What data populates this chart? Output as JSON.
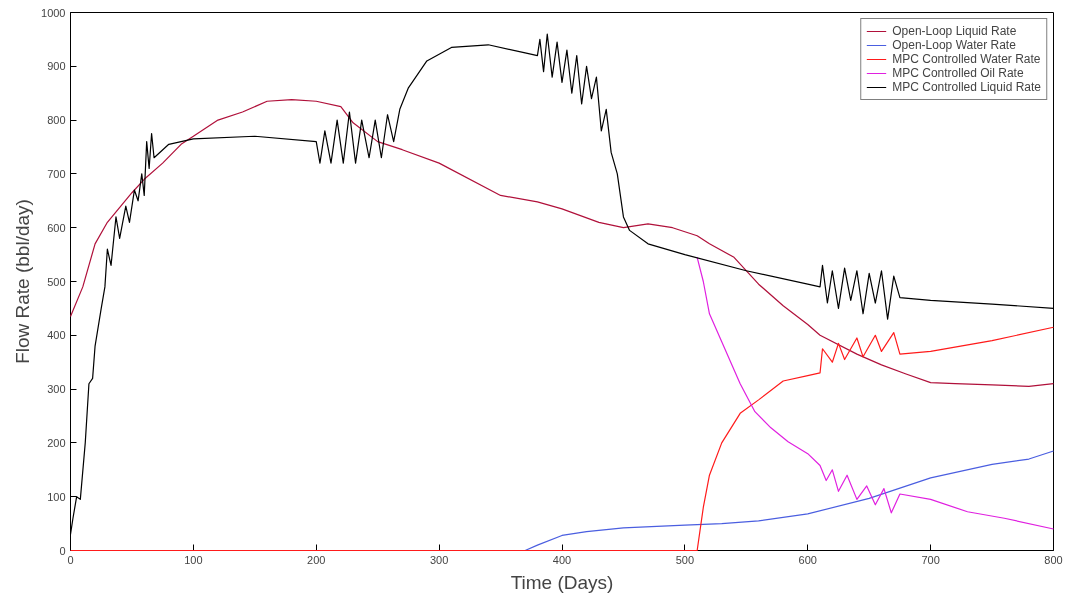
{
  "chart_data": {
    "type": "line",
    "xlabel": "Time (Days)",
    "ylabel": "Flow Rate (bbl/day)",
    "xlim": [
      0,
      800
    ],
    "ylim": [
      0,
      1000
    ],
    "xticks": [
      0,
      100,
      200,
      300,
      400,
      500,
      600,
      700,
      800
    ],
    "yticks": [
      0,
      100,
      200,
      300,
      400,
      500,
      600,
      700,
      800,
      900,
      1000
    ],
    "grid": false,
    "legend": "top right",
    "line_style": "solid",
    "marker": "none",
    "series": [
      {
        "name": "Open-Loop Liquid Rate",
        "color": "#b0103a",
        "x": [
          0,
          10,
          20,
          30,
          50,
          60,
          75,
          90,
          100,
          120,
          140,
          160,
          180,
          200,
          220,
          230,
          250,
          270,
          300,
          350,
          380,
          400,
          430,
          450,
          470,
          490,
          510,
          520,
          540,
          560,
          580,
          600,
          610,
          640,
          660,
          680,
          700,
          720,
          750,
          780,
          800
        ],
        "values": [
          435,
          490,
          570,
          610,
          665,
          690,
          720,
          755,
          770,
          800,
          815,
          835,
          838,
          835,
          825,
          795,
          760,
          745,
          720,
          660,
          648,
          635,
          610,
          600,
          607,
          600,
          585,
          570,
          545,
          495,
          455,
          420,
          400,
          365,
          345,
          328,
          312,
          310,
          308,
          305,
          310
        ]
      },
      {
        "name": "Open-Loop Water Rate",
        "color": "#4a5ee0",
        "x": [
          370,
          380,
          400,
          420,
          450,
          500,
          530,
          560,
          600,
          650,
          700,
          750,
          780,
          800
        ],
        "values": [
          0,
          10,
          28,
          35,
          42,
          47,
          50,
          55,
          68,
          97,
          135,
          160,
          170,
          185
        ]
      },
      {
        "name": "MPC Controlled Water Rate",
        "color": "#ff1a1a",
        "x": [
          0,
          505,
          510,
          515,
          520,
          530,
          545,
          560,
          580,
          600,
          610,
          612,
          620,
          625,
          630,
          640,
          645,
          655,
          660,
          670,
          675,
          700,
          750,
          800
        ],
        "values": [
          0,
          0,
          0,
          80,
          140,
          200,
          255,
          280,
          315,
          325,
          330,
          375,
          350,
          385,
          355,
          395,
          360,
          400,
          370,
          405,
          365,
          370,
          390,
          415
        ]
      },
      {
        "name": "MPC Controlled Oil Rate",
        "color": "#e020e0",
        "x": [
          510,
          515,
          520,
          530,
          545,
          557,
          570,
          584,
          600,
          610,
          615,
          620,
          625,
          632,
          640,
          648,
          655,
          662,
          668,
          675,
          700,
          730,
          760,
          800
        ],
        "values": [
          545,
          500,
          440,
          388,
          310,
          258,
          228,
          202,
          180,
          158,
          130,
          150,
          110,
          140,
          95,
          120,
          85,
          115,
          70,
          105,
          95,
          72,
          60,
          40
        ]
      },
      {
        "name": "MPC Controlled Liquid Rate",
        "color": "#000000",
        "x": [
          0,
          2,
          5,
          8,
          12,
          15,
          18,
          20,
          25,
          28,
          30,
          33,
          37,
          40,
          45,
          48,
          52,
          55,
          58,
          60,
          62,
          64,
          66,
          68,
          80,
          100,
          150,
          200,
          203,
          207,
          212,
          217,
          222,
          227,
          232,
          237,
          243,
          248,
          253,
          258,
          263,
          268,
          275,
          290,
          310,
          340,
          370,
          380,
          382,
          385,
          388,
          392,
          396,
          400,
          404,
          408,
          412,
          416,
          420,
          424,
          428,
          432,
          436,
          440,
          445,
          450,
          455,
          470,
          500,
          550,
          600,
          610,
          612,
          616,
          620,
          625,
          630,
          635,
          640,
          645,
          650,
          655,
          660,
          665,
          670,
          675,
          700,
          750,
          800
        ],
        "values": [
          30,
          60,
          100,
          95,
          200,
          310,
          320,
          380,
          450,
          490,
          560,
          530,
          620,
          580,
          640,
          610,
          670,
          650,
          700,
          660,
          760,
          710,
          775,
          730,
          755,
          765,
          770,
          760,
          720,
          780,
          720,
          800,
          720,
          815,
          720,
          800,
          730,
          800,
          730,
          810,
          760,
          820,
          860,
          910,
          935,
          940,
          925,
          920,
          950,
          890,
          960,
          880,
          945,
          870,
          930,
          850,
          920,
          830,
          900,
          840,
          880,
          780,
          820,
          740,
          700,
          620,
          595,
          570,
          550,
          520,
          495,
          490,
          530,
          460,
          520,
          450,
          525,
          465,
          520,
          440,
          515,
          460,
          520,
          430,
          510,
          470,
          465,
          458,
          450
        ]
      }
    ]
  }
}
